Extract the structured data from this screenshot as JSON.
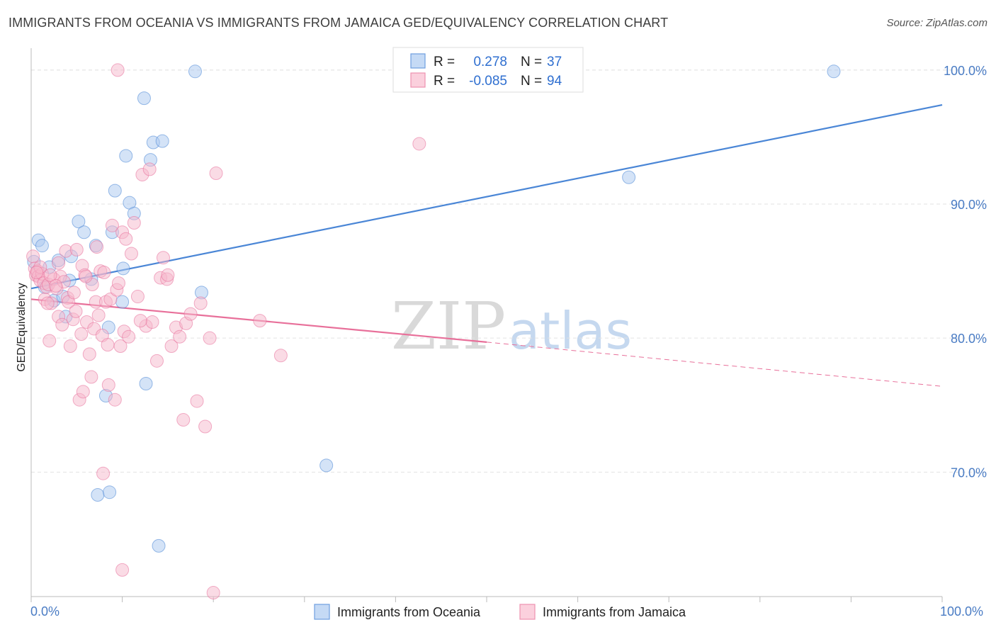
{
  "title": "IMMIGRANTS FROM OCEANIA VS IMMIGRANTS FROM JAMAICA GED/EQUIVALENCY CORRELATION CHART",
  "source": "Source: ZipAtlas.com",
  "watermark": {
    "zip": "ZIP",
    "atlas": "atlas"
  },
  "legend_box": {
    "rows": [
      {
        "r_label": "R =",
        "r_value": "0.278",
        "n_label": "N =",
        "n_value": "37",
        "color": "#a9c8f0"
      },
      {
        "r_label": "R =",
        "r_value": "-0.085",
        "n_label": "N =",
        "n_value": "94",
        "color": "#f6b8cb"
      }
    ]
  },
  "bottom_legend": [
    {
      "label": "Immigrants from Oceania",
      "color": "#a9c8f0"
    },
    {
      "label": "Immigrants from Jamaica",
      "color": "#f6b8cb"
    }
  ],
  "chart_data": {
    "type": "scatter",
    "title": "IMMIGRANTS FROM OCEANIA VS IMMIGRANTS FROM JAMAICA GED/EQUIVALENCY CORRELATION CHART",
    "xlabel": "",
    "ylabel": "GED/Equivalency",
    "xlim": [
      0,
      100
    ],
    "ylim": [
      60.5,
      101
    ],
    "x_tick_labels": [
      "0.0%",
      "100.0%"
    ],
    "y_ticks": [
      70,
      80,
      90,
      100
    ],
    "y_tick_labels": [
      "70.0%",
      "80.0%",
      "90.0%",
      "100.0%"
    ],
    "grid": true,
    "legend": "top-center",
    "series": [
      {
        "name": "Immigrants from Oceania",
        "color": "#4a86d6",
        "fill": "#a9c8f0",
        "points": [
          [
            0.3,
            85.7
          ],
          [
            0.8,
            87.3
          ],
          [
            1.2,
            86.9
          ],
          [
            1.5,
            83.8
          ],
          [
            2.0,
            85.3
          ],
          [
            2.5,
            82.8
          ],
          [
            3.0,
            85.8
          ],
          [
            3.5,
            83.1
          ],
          [
            3.8,
            81.6
          ],
          [
            4.2,
            84.3
          ],
          [
            4.4,
            86.1
          ],
          [
            5.2,
            88.7
          ],
          [
            5.8,
            87.9
          ],
          [
            6.6,
            84.4
          ],
          [
            7.1,
            86.9
          ],
          [
            8.5,
            80.8
          ],
          [
            8.2,
            75.7
          ],
          [
            7.3,
            68.3
          ],
          [
            8.6,
            68.5
          ],
          [
            8.9,
            87.9
          ],
          [
            9.2,
            91.0
          ],
          [
            10.0,
            82.7
          ],
          [
            10.1,
            85.2
          ],
          [
            10.8,
            90.1
          ],
          [
            11.3,
            89.3
          ],
          [
            10.4,
            93.6
          ],
          [
            12.4,
            97.9
          ],
          [
            12.6,
            76.6
          ],
          [
            13.1,
            93.3
          ],
          [
            13.4,
            94.6
          ],
          [
            14.0,
            64.5
          ],
          [
            14.4,
            94.7
          ],
          [
            18.0,
            99.9
          ],
          [
            18.7,
            83.4
          ],
          [
            32.4,
            70.5
          ],
          [
            65.6,
            92.0
          ],
          [
            88.1,
            99.9
          ]
        ]
      },
      {
        "name": "Immigrants from Jamaica",
        "color": "#e8709a",
        "fill": "#f6b8cb",
        "points": [
          [
            0.2,
            86.1
          ],
          [
            0.4,
            85.2
          ],
          [
            0.5,
            84.7
          ],
          [
            0.7,
            85.0
          ],
          [
            0.8,
            84.6
          ],
          [
            1.0,
            84.3
          ],
          [
            1.2,
            84.8
          ],
          [
            1.4,
            84.1
          ],
          [
            1.5,
            82.9
          ],
          [
            1.7,
            83.8
          ],
          [
            1.9,
            84.0
          ],
          [
            2.0,
            79.8
          ],
          [
            2.2,
            82.6
          ],
          [
            2.5,
            84.4
          ],
          [
            2.8,
            83.7
          ],
          [
            3.0,
            81.6
          ],
          [
            3.2,
            84.6
          ],
          [
            3.4,
            81.0
          ],
          [
            3.6,
            84.2
          ],
          [
            3.8,
            86.5
          ],
          [
            4.0,
            83.0
          ],
          [
            4.1,
            82.7
          ],
          [
            4.3,
            79.4
          ],
          [
            4.6,
            81.4
          ],
          [
            4.9,
            82.0
          ],
          [
            5.0,
            86.6
          ],
          [
            5.3,
            75.4
          ],
          [
            5.6,
            85.4
          ],
          [
            5.7,
            76.0
          ],
          [
            5.9,
            84.7
          ],
          [
            6.1,
            81.2
          ],
          [
            6.4,
            78.8
          ],
          [
            6.6,
            77.1
          ],
          [
            6.7,
            84.0
          ],
          [
            6.9,
            80.7
          ],
          [
            7.1,
            82.7
          ],
          [
            7.2,
            86.8
          ],
          [
            7.4,
            81.7
          ],
          [
            7.6,
            85.0
          ],
          [
            7.8,
            80.2
          ],
          [
            7.9,
            69.9
          ],
          [
            8.2,
            82.7
          ],
          [
            8.4,
            79.5
          ],
          [
            8.5,
            76.5
          ],
          [
            8.7,
            82.9
          ],
          [
            8.9,
            88.4
          ],
          [
            9.2,
            75.4
          ],
          [
            9.4,
            83.6
          ],
          [
            9.6,
            84.1
          ],
          [
            9.8,
            79.4
          ],
          [
            10.0,
            87.9
          ],
          [
            10.2,
            80.5
          ],
          [
            10.4,
            87.4
          ],
          [
            10.7,
            80.1
          ],
          [
            11.0,
            86.3
          ],
          [
            11.3,
            88.6
          ],
          [
            11.7,
            83.1
          ],
          [
            12.2,
            92.2
          ],
          [
            12.6,
            80.9
          ],
          [
            13.0,
            92.6
          ],
          [
            13.3,
            81.2
          ],
          [
            13.8,
            78.3
          ],
          [
            14.2,
            84.5
          ],
          [
            14.5,
            86.0
          ],
          [
            14.9,
            84.4
          ],
          [
            15.4,
            79.4
          ],
          [
            15.9,
            80.8
          ],
          [
            16.3,
            80.1
          ],
          [
            16.7,
            73.9
          ],
          [
            17.0,
            81.1
          ],
          [
            17.5,
            81.8
          ],
          [
            18.2,
            75.3
          ],
          [
            18.6,
            82.6
          ],
          [
            19.1,
            73.4
          ],
          [
            19.6,
            80.0
          ],
          [
            20.3,
            92.3
          ],
          [
            25.1,
            81.3
          ],
          [
            27.4,
            78.7
          ],
          [
            42.6,
            94.5
          ],
          [
            20.0,
            61.0
          ],
          [
            10.0,
            62.7
          ],
          [
            9.5,
            100.0
          ],
          [
            3.0,
            85.6
          ],
          [
            2.1,
            84.7
          ],
          [
            4.7,
            83.4
          ],
          [
            6.0,
            84.6
          ],
          [
            1.0,
            85.3
          ],
          [
            2.7,
            83.9
          ],
          [
            0.6,
            84.9
          ],
          [
            1.8,
            82.6
          ],
          [
            5.5,
            80.3
          ],
          [
            8.0,
            84.9
          ],
          [
            12.0,
            81.3
          ],
          [
            15.0,
            84.7
          ]
        ]
      }
    ],
    "trend_lines": [
      {
        "series": "Immigrants from Oceania",
        "from": [
          0,
          83.7
        ],
        "to": [
          100,
          97.4
        ],
        "style": "solid"
      },
      {
        "series": "Immigrants from Jamaica",
        "from": [
          0,
          82.9
        ],
        "to": [
          50,
          79.7
        ],
        "style": "solid"
      },
      {
        "series": "Immigrants from Jamaica",
        "from": [
          50,
          79.7
        ],
        "to": [
          100,
          76.4
        ],
        "style": "dashed"
      }
    ]
  }
}
